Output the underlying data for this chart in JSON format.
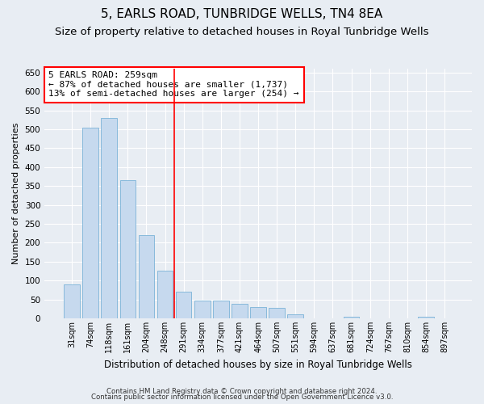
{
  "title": "5, EARLS ROAD, TUNBRIDGE WELLS, TN4 8EA",
  "subtitle": "Size of property relative to detached houses in Royal Tunbridge Wells",
  "xlabel": "Distribution of detached houses by size in Royal Tunbridge Wells",
  "ylabel": "Number of detached properties",
  "footnote1": "Contains HM Land Registry data © Crown copyright and database right 2024.",
  "footnote2": "Contains public sector information licensed under the Open Government Licence v3.0.",
  "bin_labels": [
    "31sqm",
    "74sqm",
    "118sqm",
    "161sqm",
    "204sqm",
    "248sqm",
    "291sqm",
    "334sqm",
    "377sqm",
    "421sqm",
    "464sqm",
    "507sqm",
    "551sqm",
    "594sqm",
    "637sqm",
    "681sqm",
    "724sqm",
    "767sqm",
    "810sqm",
    "854sqm",
    "897sqm"
  ],
  "bar_values": [
    90,
    505,
    530,
    365,
    220,
    125,
    70,
    48,
    48,
    38,
    30,
    28,
    10,
    0,
    0,
    5,
    0,
    0,
    0,
    5,
    0
  ],
  "bar_color": "#c6d9ee",
  "bar_edge_color": "#7ab3d8",
  "vline_x": 5.5,
  "vline_color": "red",
  "annotation_text": "5 EARLS ROAD: 259sqm\n← 87% of detached houses are smaller (1,737)\n13% of semi-detached houses are larger (254) →",
  "annotation_box_color": "white",
  "annotation_box_edge_color": "red",
  "ylim": [
    0,
    660
  ],
  "yticks": [
    0,
    50,
    100,
    150,
    200,
    250,
    300,
    350,
    400,
    450,
    500,
    550,
    600,
    650
  ],
  "bg_color": "#e8edf3",
  "plot_bg_color": "#e8edf3",
  "title_fontsize": 11,
  "subtitle_fontsize": 9.5
}
